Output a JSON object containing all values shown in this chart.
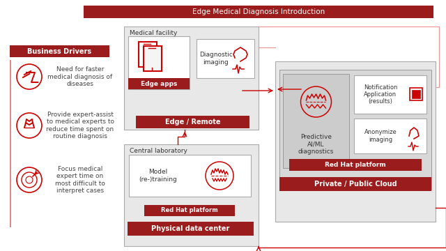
{
  "title": "Edge Medical Diagnosis Introduction",
  "dark_red": "#9b1c1c",
  "red": "#cc0000",
  "bg_color": "#ffffff",
  "gray_box": "#e8e8e8",
  "gray_border": "#aaaaaa",
  "inner_gray": "#d8d8d8",
  "business_drivers_label": "Business Drivers",
  "business_items": [
    "Need for faster\nmedical diagnosis of\ndiseases",
    "Provide expert-assist\nto medical experts to\nreduce time spent on\nroutine diagnosis",
    "Focus medical\nexpert time on\nmost difficult to\ninterpret cases"
  ],
  "medical_facility_label": "Medical facility",
  "edge_apps_label": "Edge apps",
  "diag_imaging_label": "Diagnostic\nimaging",
  "edge_remote_label": "Edge / Remote",
  "central_lab_label": "Central laboratory",
  "model_training_label": "Model\n(re-)training",
  "redhat_platform_label": "Red Hat platform",
  "physical_dc_label": "Physical data center",
  "cloud_label": "Predictive\nAI/ML\ndiagnostics",
  "notification_label": "Notification\nApplication\n(results)",
  "anonymize_label": "Anonymize\nimaging",
  "redhat_platform2_label": "Red Hat platform",
  "private_cloud_label": "Private / Public Cloud"
}
